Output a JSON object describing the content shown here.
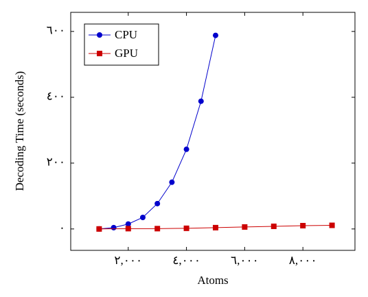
{
  "chart_data": {
    "type": "line",
    "xlabel": "Atoms",
    "ylabel": "Decoding Time (seconds)",
    "series": [
      {
        "name": "CPU",
        "color": "#0000cc",
        "marker": "circle",
        "x": [
          1000,
          1500,
          2000,
          2500,
          3000,
          3500,
          4000,
          4500,
          5000
        ],
        "values": [
          0,
          4,
          15,
          35,
          77,
          142,
          242,
          388,
          588
        ]
      },
      {
        "name": "GPU",
        "color": "#cc0000",
        "marker": "square",
        "x": [
          1000,
          2000,
          3000,
          4000,
          5000,
          6000,
          7000,
          8000,
          9000
        ],
        "values": [
          0,
          1,
          1,
          2,
          4,
          6,
          8,
          10,
          11
        ]
      }
    ],
    "xlim": [
      24,
      9788
    ],
    "xticks": [
      {
        "value": 2000,
        "label": "٢,٠٠٠"
      },
      {
        "value": 4000,
        "label": "٤,٠٠٠"
      },
      {
        "value": 6000,
        "label": "٦,٠٠٠"
      },
      {
        "value": 8000,
        "label": "٨,٠٠٠"
      }
    ],
    "ylim": [
      -65,
      658
    ],
    "yticks": [
      {
        "value": 0,
        "label": "٠"
      },
      {
        "value": 200,
        "label": "٢٠٠"
      },
      {
        "value": 400,
        "label": "٤٠٠"
      },
      {
        "value": 600,
        "label": "٦٠٠"
      }
    ],
    "legend": "upper left",
    "grid": false
  }
}
